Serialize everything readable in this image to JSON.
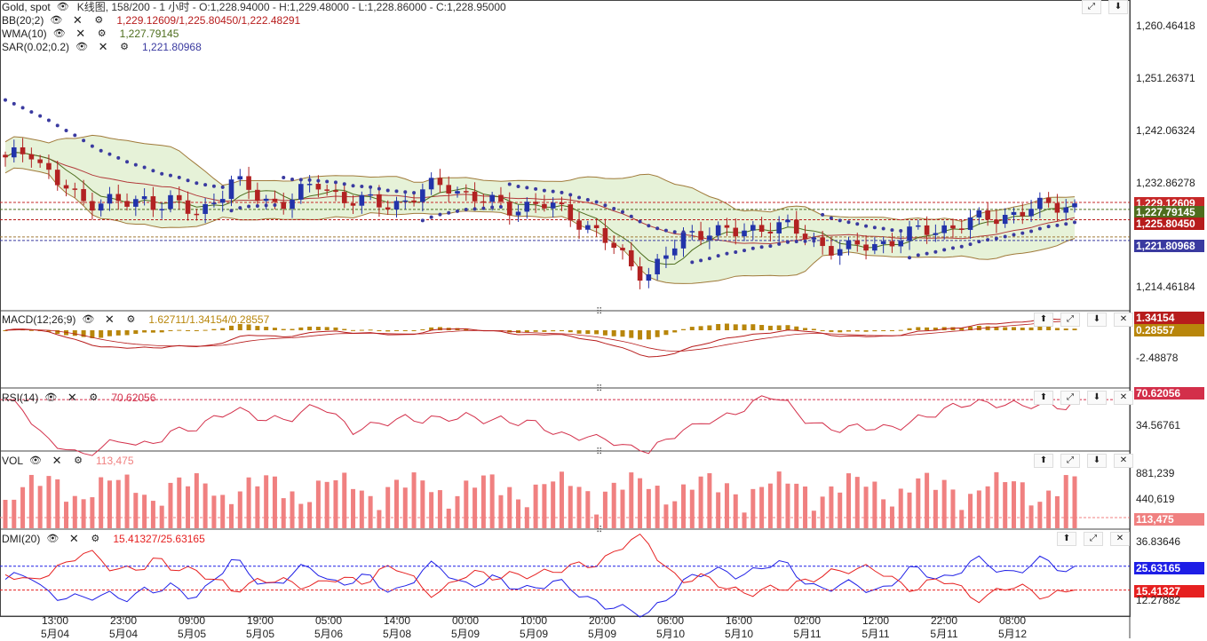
{
  "main": {
    "title": "Gold, spot",
    "info": "K线图, 158/200 - 1 小时 - O:1,228.94000 - H:1,229.48000 - L:1,228.86000 - C:1,228.95000",
    "indicators": [
      {
        "name": "BB(20;2)",
        "value": "1,229.12609/1,225.80450/1,222.48291"
      },
      {
        "name": "WMA(10)",
        "value": "1,227.79145"
      },
      {
        "name": "SAR(0.02;0.2)",
        "value": "1,221.80968"
      }
    ],
    "axis_labels": [
      "1,260.46418",
      "1,251.26371",
      "1,242.06324",
      "1,232.86278",
      "1,214.46184"
    ],
    "tags": [
      {
        "text": "1,229.12609",
        "color": "#c62828"
      },
      {
        "text": "1,227.79145",
        "color": "#4e6e1e"
      },
      {
        "text": "1,225.80450",
        "color": "#b71c1c"
      },
      {
        "text": "1,221.80968",
        "color": "#3a3aa0"
      }
    ]
  },
  "macd": {
    "name": "MACD(12;26;9)",
    "value": "1.62711/1.34154/0.28557",
    "axis_label": "-2.48878",
    "tags": [
      {
        "text": "1.34154",
        "color": "#b71c1c"
      },
      {
        "text": "0.28557",
        "color": "#b8860b"
      }
    ]
  },
  "rsi": {
    "name": "RSI(14)",
    "value": "70.62056",
    "axis_label": "34.56761",
    "tags": [
      {
        "text": "70.62056",
        "color": "#d32f4a"
      }
    ]
  },
  "vol": {
    "name": "VOL",
    "value": "113,475",
    "axis_labels": [
      "881,239",
      "440,619"
    ],
    "tags": [
      {
        "text": "113,475",
        "color": "#f08080"
      }
    ]
  },
  "dmi": {
    "name": "DMI(20)",
    "value": "15.41327/25.63165",
    "axis_labels": [
      "36.83646",
      "12.27882"
    ],
    "tags": [
      {
        "text": "25.63165",
        "color": "#1e1ee6"
      },
      {
        "text": "15.41327",
        "color": "#e62020"
      }
    ]
  },
  "time_axis": [
    {
      "t": "13:00",
      "d": "5月04"
    },
    {
      "t": "23:00",
      "d": "5月04"
    },
    {
      "t": "09:00",
      "d": "5月05"
    },
    {
      "t": "19:00",
      "d": "5月05"
    },
    {
      "t": "05:00",
      "d": "5月06"
    },
    {
      "t": "14:00",
      "d": "5月08"
    },
    {
      "t": "00:00",
      "d": "5月09"
    },
    {
      "t": "10:00",
      "d": "5月09"
    },
    {
      "t": "20:00",
      "d": "5月09"
    },
    {
      "t": "06:00",
      "d": "5月10"
    },
    {
      "t": "16:00",
      "d": "5月10"
    },
    {
      "t": "02:00",
      "d": "5月11"
    },
    {
      "t": "12:00",
      "d": "5月11"
    },
    {
      "t": "22:00",
      "d": "5月11"
    },
    {
      "t": "08:00",
      "d": "5月12"
    }
  ],
  "chart_data": {
    "type": "candlestick",
    "bars": 124,
    "price_ylim": [
      1210.0,
      1265.0
    ],
    "close_path": [
      1237.0,
      1238.5,
      1239.5,
      1236.0,
      1233.0,
      1231.5,
      1229.0,
      1229.5,
      1230.0,
      1229.0,
      1228.5,
      1229.5,
      1229.0,
      1230.0,
      1228.0,
      1226.5,
      1228.0,
      1231.0,
      1233.5,
      1232.0,
      1230.0,
      1229.0,
      1229.5,
      1230.5,
      1231.5,
      1232.5,
      1231.0,
      1230.0,
      1229.5,
      1229.0,
      1228.5,
      1229.0,
      1230.0,
      1231.0,
      1232.0,
      1232.5,
      1231.5,
      1230.5,
      1229.5,
      1228.5,
      1228.0,
      1228.5,
      1229.0,
      1228.5,
      1227.5,
      1226.5,
      1225.0,
      1223.5,
      1221.0,
      1218.5,
      1216.5,
      1215.5,
      1217.5,
      1220.0,
      1222.5,
      1223.5,
      1224.0,
      1223.5,
      1223.0,
      1223.5,
      1224.5,
      1225.0,
      1224.5,
      1223.0,
      1222.0,
      1221.0,
      1220.5,
      1220.0,
      1220.5,
      1221.0,
      1221.5,
      1222.5,
      1223.0,
      1223.5,
      1224.0,
      1224.5,
      1225.0,
      1225.5,
      1226.0,
      1226.5,
      1227.0,
      1227.5,
      1228.0,
      1228.5,
      1228.9,
      1228.95
    ],
    "last": {
      "open": 1228.94,
      "high": 1229.48,
      "low": 1228.86,
      "close": 1228.95
    },
    "bollinger_last": {
      "upper": 1229.12609,
      "mid": 1225.8045,
      "lower": 1222.48291
    },
    "wma10_last": 1227.79145,
    "sar_last": 1221.80968,
    "macd_last": {
      "macd": 1.62711,
      "signal": 1.34154,
      "hist": 0.28557
    },
    "rsi_last": 70.62056,
    "vol_last": 113475,
    "dmi_last": {
      "minus": 15.41327,
      "plus": 25.63165
    }
  }
}
